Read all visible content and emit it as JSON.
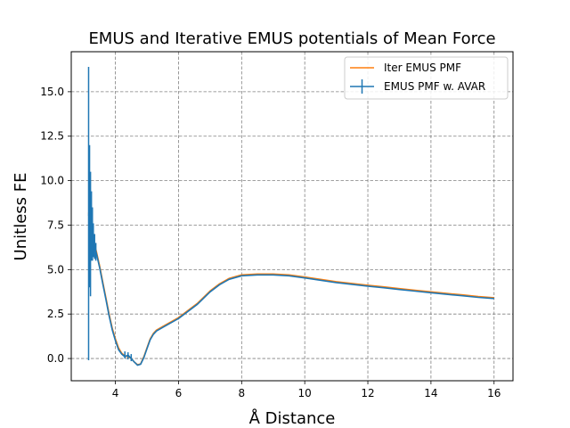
{
  "chart_data": {
    "type": "line",
    "title": "EMUS and Iterative EMUS potentials of Mean Force",
    "xlabel": "Å Distance",
    "ylabel": "Unitless FE",
    "xlim": [
      2.6,
      16.6
    ],
    "ylim": [
      -1.25,
      17.25
    ],
    "xticks": [
      4,
      6,
      8,
      10,
      12,
      14,
      16
    ],
    "yticks": [
      0.0,
      2.5,
      5.0,
      7.5,
      10.0,
      12.5,
      15.0
    ],
    "xtick_labels": [
      "4",
      "6",
      "8",
      "10",
      "12",
      "14",
      "16"
    ],
    "ytick_labels": [
      "0.0",
      "2.5",
      "5.0",
      "7.5",
      "10.0",
      "12.5",
      "15.0"
    ],
    "grid": true,
    "legend_position": "top-right",
    "colors": {
      "iter": "#ff7f0e",
      "emus": "#1f77b4",
      "grid": "#808080"
    },
    "series": [
      {
        "name": "Iter EMUS PMF",
        "color": "#ff7f0e",
        "x": [
          3.15,
          3.2,
          3.25,
          3.3,
          3.35,
          3.4,
          3.45,
          3.5,
          3.6,
          3.7,
          3.8,
          3.9,
          4.0,
          4.1,
          4.2,
          4.3,
          4.4,
          4.5,
          4.6,
          4.7,
          4.8,
          4.9,
          5.0,
          5.1,
          5.2,
          5.3,
          5.5,
          5.7,
          6.0,
          6.3,
          6.6,
          7.0,
          7.3,
          7.6,
          8.0,
          8.5,
          9.0,
          9.5,
          10.0,
          10.5,
          11.0,
          11.5,
          12.0,
          12.5,
          13.0,
          13.5,
          14.0,
          14.5,
          15.0,
          15.5,
          16.0
        ],
        "y": [
          8.2,
          7.6,
          7.0,
          6.6,
          6.3,
          6.0,
          5.6,
          5.2,
          4.3,
          3.4,
          2.5,
          1.7,
          1.1,
          0.6,
          0.3,
          0.15,
          0.1,
          0.0,
          -0.2,
          -0.35,
          -0.3,
          0.1,
          0.6,
          1.1,
          1.4,
          1.6,
          1.8,
          2.0,
          2.3,
          2.7,
          3.1,
          3.8,
          4.2,
          4.5,
          4.7,
          4.75,
          4.75,
          4.7,
          4.58,
          4.45,
          4.32,
          4.22,
          4.12,
          4.03,
          3.93,
          3.84,
          3.75,
          3.66,
          3.58,
          3.49,
          3.42
        ]
      },
      {
        "name": "EMUS PMF w. AVAR",
        "color": "#1f77b4",
        "x": [
          3.15,
          3.2,
          3.25,
          3.3,
          3.35,
          3.4,
          3.45,
          3.5,
          3.6,
          3.7,
          3.8,
          3.9,
          4.0,
          4.1,
          4.2,
          4.3,
          4.4,
          4.5,
          4.6,
          4.7,
          4.8,
          4.9,
          5.0,
          5.1,
          5.2,
          5.3,
          5.5,
          5.7,
          6.0,
          6.3,
          6.6,
          7.0,
          7.3,
          7.6,
          8.0,
          8.5,
          9.0,
          9.5,
          10.0,
          10.5,
          11.0,
          11.5,
          12.0,
          12.5,
          13.0,
          13.5,
          14.0,
          14.5,
          15.0,
          15.5,
          16.0
        ],
        "y": [
          8.1,
          7.5,
          6.9,
          6.5,
          6.2,
          5.9,
          5.5,
          5.1,
          4.2,
          3.3,
          2.4,
          1.6,
          1.0,
          0.5,
          0.25,
          0.1,
          0.2,
          0.0,
          -0.2,
          -0.38,
          -0.32,
          0.05,
          0.55,
          1.05,
          1.35,
          1.55,
          1.75,
          1.95,
          2.25,
          2.65,
          3.05,
          3.75,
          4.15,
          4.45,
          4.65,
          4.7,
          4.7,
          4.65,
          4.53,
          4.4,
          4.27,
          4.17,
          4.07,
          3.98,
          3.88,
          3.79,
          3.7,
          3.61,
          3.53,
          3.44,
          3.37
        ],
        "errorbars": [
          {
            "x": 3.15,
            "low": -0.1,
            "high": 16.4
          },
          {
            "x": 3.18,
            "low": 4.0,
            "high": 12.0
          },
          {
            "x": 3.21,
            "low": 3.5,
            "high": 10.5
          },
          {
            "x": 3.24,
            "low": 5.5,
            "high": 9.4
          },
          {
            "x": 3.27,
            "low": 5.5,
            "high": 8.5
          },
          {
            "x": 3.3,
            "low": 5.7,
            "high": 7.6
          },
          {
            "x": 3.34,
            "low": 5.6,
            "high": 7.0
          },
          {
            "x": 3.38,
            "low": 5.5,
            "high": 6.5
          },
          {
            "x": 4.3,
            "low": 0.0,
            "high": 0.4
          },
          {
            "x": 4.4,
            "low": -0.05,
            "high": 0.35
          },
          {
            "x": 4.5,
            "low": -0.15,
            "high": 0.25
          }
        ]
      }
    ]
  }
}
